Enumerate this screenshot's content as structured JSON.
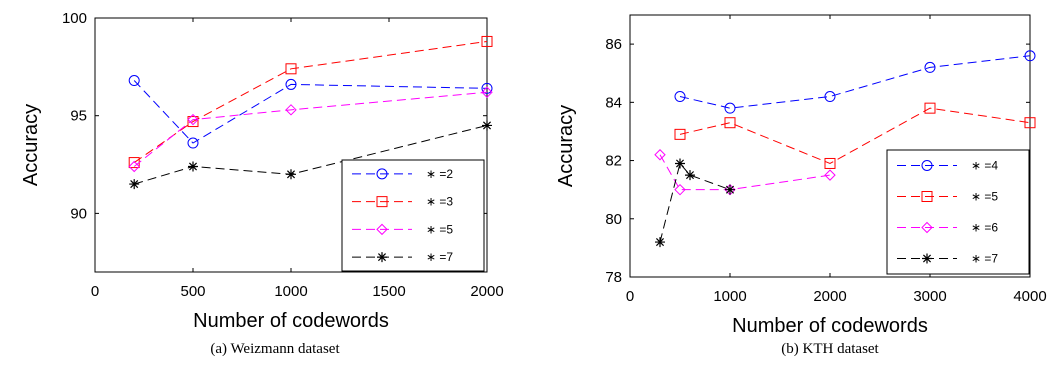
{
  "chart_data": [
    {
      "type": "line",
      "xlabel": "Number of codewords",
      "ylabel": "Accuracy",
      "xlim": [
        0,
        2000
      ],
      "ylim": [
        87,
        100
      ],
      "xticks": [
        0,
        500,
        1000,
        1500,
        2000
      ],
      "yticks": [
        90,
        95,
        100
      ],
      "grid": false,
      "legend_position": "bottom-right",
      "caption": "(a) Weizmann dataset",
      "series": [
        {
          "name": "∗ =2",
          "color": "#0000ff",
          "marker": "circle",
          "x": [
            200,
            500,
            1000,
            2000
          ],
          "y": [
            96.8,
            93.6,
            96.6,
            96.4
          ]
        },
        {
          "name": "∗ =3",
          "color": "#ff0000",
          "marker": "square",
          "x": [
            200,
            500,
            1000,
            2000
          ],
          "y": [
            92.6,
            94.7,
            97.4,
            98.8
          ]
        },
        {
          "name": "∗ =5",
          "color": "#ff00ff",
          "marker": "diamond",
          "x": [
            200,
            500,
            1000,
            2000
          ],
          "y": [
            92.4,
            94.8,
            95.3,
            96.2
          ]
        },
        {
          "name": "∗ =7",
          "color": "#000000",
          "marker": "star",
          "x": [
            200,
            500,
            1000,
            2000
          ],
          "y": [
            91.5,
            92.4,
            92.0,
            94.5
          ]
        }
      ]
    },
    {
      "type": "line",
      "xlabel": "Number of codewords",
      "ylabel": "Accuracy",
      "xlim": [
        0,
        4000
      ],
      "ylim": [
        78,
        87
      ],
      "xticks": [
        0,
        1000,
        2000,
        3000,
        4000
      ],
      "yticks": [
        78,
        80,
        82,
        84,
        86
      ],
      "grid": false,
      "legend_position": "bottom-right",
      "caption": "(b) KTH dataset",
      "series": [
        {
          "name": "∗ =4",
          "color": "#0000ff",
          "marker": "circle",
          "x": [
            500,
            1000,
            2000,
            3000,
            4000
          ],
          "y": [
            84.2,
            83.8,
            84.2,
            85.2,
            85.6
          ]
        },
        {
          "name": "∗ =5",
          "color": "#ff0000",
          "marker": "square",
          "x": [
            500,
            1000,
            2000,
            3000,
            4000
          ],
          "y": [
            82.9,
            83.3,
            81.9,
            83.8,
            83.3
          ]
        },
        {
          "name": "∗ =6",
          "color": "#ff00ff",
          "marker": "diamond",
          "x": [
            300,
            500,
            1000,
            2000
          ],
          "y": [
            82.2,
            81.0,
            81.0,
            81.5
          ]
        },
        {
          "name": "∗ =7",
          "color": "#000000",
          "marker": "star",
          "x": [
            300,
            500,
            600,
            1000
          ],
          "y": [
            79.2,
            81.9,
            81.5,
            81.0
          ]
        }
      ]
    }
  ]
}
